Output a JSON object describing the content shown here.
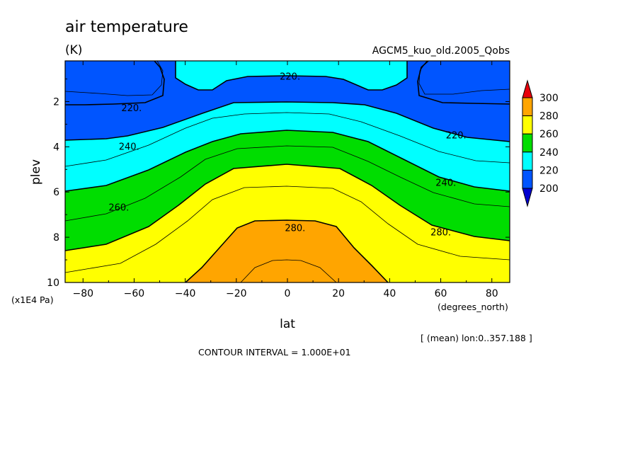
{
  "chart_data": {
    "type": "heatmap",
    "title": "air temperature",
    "units": "(K)",
    "subtitle": "AGCM5_kuo_old.2005_Qobs",
    "xlabel": "lat",
    "xunits": "(degrees_north)",
    "ylabel": "plev",
    "yunits": "(x1E4 Pa)",
    "xlim": [
      -87,
      87
    ],
    "ylim": [
      0.2,
      10
    ],
    "x_ticks": [
      -80,
      -60,
      -40,
      -20,
      0,
      20,
      40,
      60,
      80
    ],
    "x_tick_labels": [
      "−80",
      "−60",
      "−40",
      "−20",
      "0",
      "20",
      "40",
      "60",
      "80"
    ],
    "y_ticks": [
      2,
      4,
      6,
      8,
      10
    ],
    "y_tick_labels": [
      "2",
      "4",
      "6",
      "8",
      "10"
    ],
    "colorbar": {
      "levels": [
        "300",
        "280",
        "260",
        "240",
        "220",
        "200"
      ],
      "colors": [
        "#e8000b",
        "#ffa500",
        "#ffff00",
        "#00dd00",
        "#00ffff",
        "#0055ff",
        "#0000d0"
      ]
    },
    "level_colors": {
      "below200": "#0000d0",
      "l200": "#0055ff",
      "l220": "#00ffff",
      "l240": "#00dd00",
      "l260": "#ffff00",
      "l280": "#ffa500"
    },
    "contour_labels": [
      {
        "text": "220.",
        "lat": 1,
        "plev": 0.9
      },
      {
        "text": "220.",
        "lat": -61,
        "plev": 2.3
      },
      {
        "text": "220.",
        "lat": 66,
        "plev": 3.5
      },
      {
        "text": "240.",
        "lat": -62,
        "plev": 4.0
      },
      {
        "text": "240.",
        "lat": 62,
        "plev": 5.6
      },
      {
        "text": "260.",
        "lat": -66,
        "plev": 6.7
      },
      {
        "text": "280.",
        "lat": 3,
        "plev": 7.6
      },
      {
        "text": "280.",
        "lat": 60,
        "plev": 7.8
      }
    ],
    "footer_region": "[ (mean) lon:0..357.188 ]",
    "contour_interval": "CONTOUR INTERVAL = 1.000E+01"
  }
}
